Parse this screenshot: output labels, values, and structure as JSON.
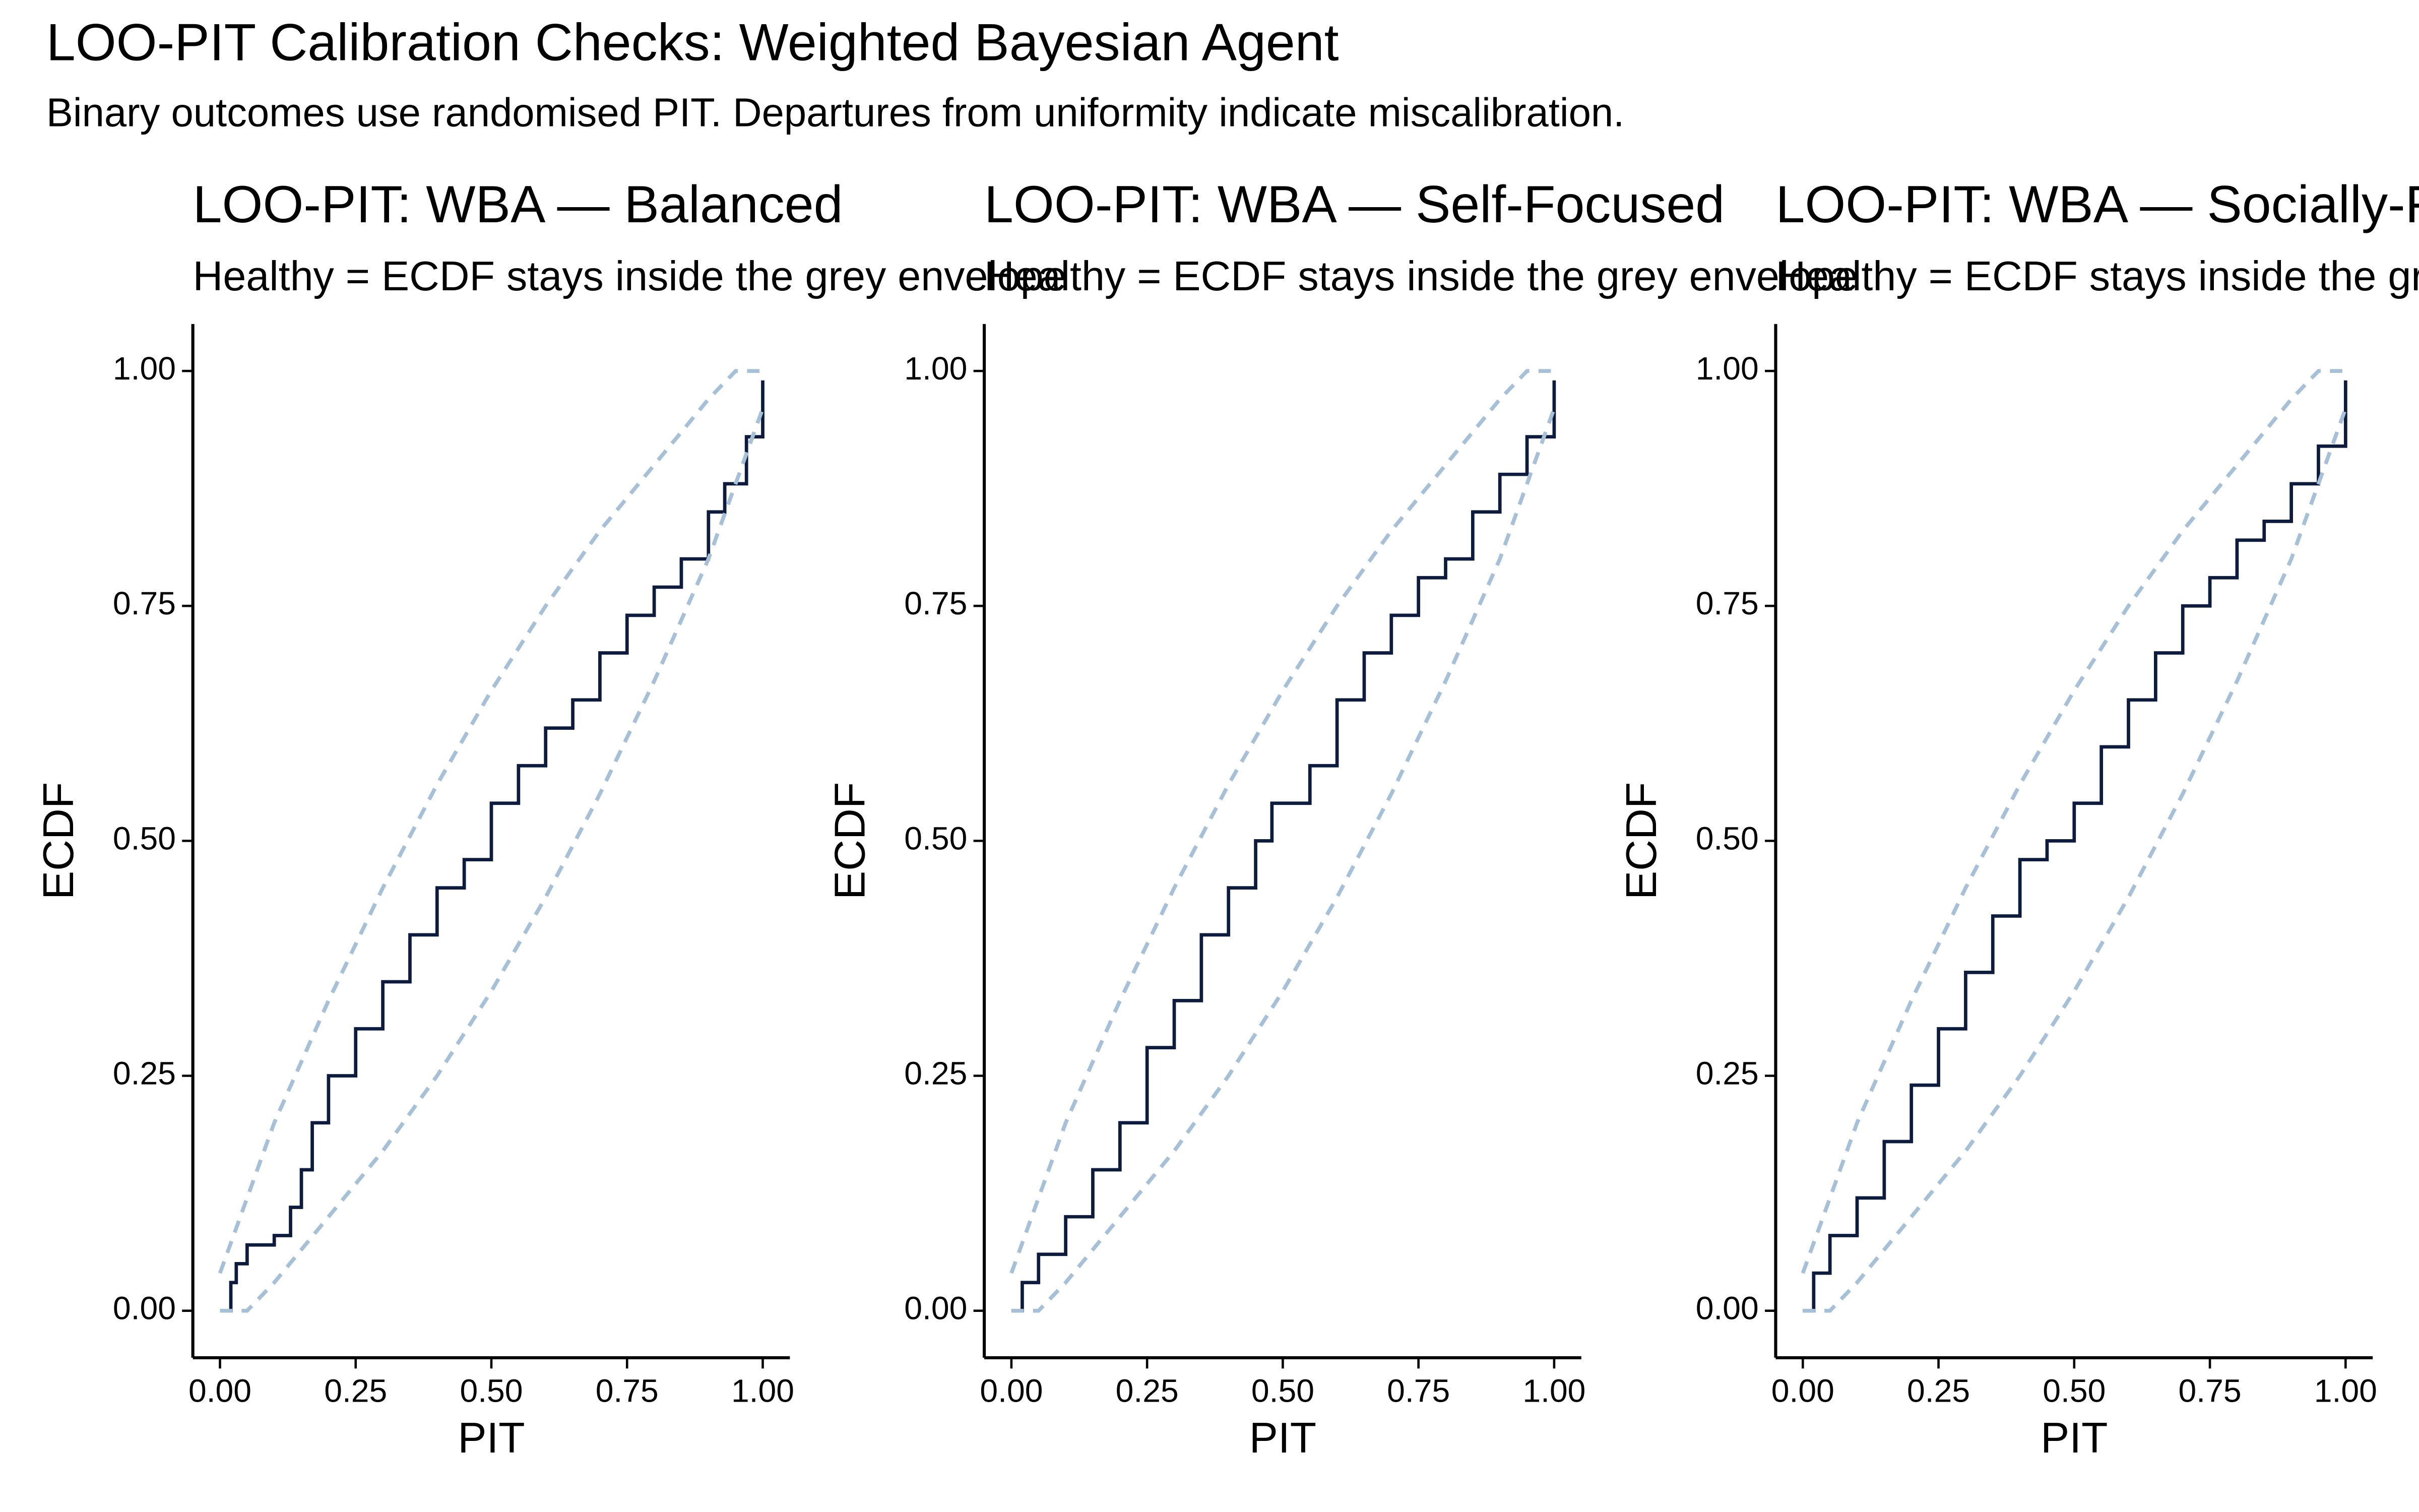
{
  "title": "LOO-PIT Calibration Checks: Weighted Bayesian Agent",
  "subtitle": "Binary outcomes use randomised PIT. Departures from uniformity indicate miscalibration.",
  "chart_data": [
    {
      "type": "line",
      "title": "LOO-PIT: WBA — Balanced",
      "subtitle": "Healthy = ECDF stays inside the grey envelope",
      "xlabel": "PIT",
      "ylabel": "ECDF",
      "xlim": [
        -0.05,
        1.05
      ],
      "ylim": [
        -0.05,
        1.05
      ],
      "xticks": [
        {
          "value": 0,
          "label": "0.00"
        },
        {
          "value": 0.25,
          "label": "0.25"
        },
        {
          "value": 0.5,
          "label": "0.50"
        },
        {
          "value": 0.75,
          "label": "0.75"
        },
        {
          "value": 1,
          "label": "1.00"
        }
      ],
      "yticks": [
        {
          "value": 0,
          "label": "0.00"
        },
        {
          "value": 0.25,
          "label": "0.25"
        },
        {
          "value": 0.5,
          "label": "0.50"
        },
        {
          "value": 0.75,
          "label": "0.75"
        },
        {
          "value": 1,
          "label": "1.00"
        }
      ],
      "series": [
        {
          "color": "#0d1b3e",
          "step": true,
          "x": [
            0,
            0.02,
            0.03,
            0.05,
            0.1,
            0.13,
            0.15,
            0.17,
            0.2,
            0.25,
            0.3,
            0.35,
            0.4,
            0.45,
            0.5,
            0.55,
            0.6,
            0.65,
            0.7,
            0.75,
            0.8,
            0.85,
            0.9,
            0.93,
            0.97,
            1
          ],
          "values": [
            0,
            0.03,
            0.05,
            0.07,
            0.08,
            0.11,
            0.15,
            0.2,
            0.25,
            0.3,
            0.35,
            0.4,
            0.45,
            0.48,
            0.54,
            0.58,
            0.62,
            0.65,
            0.7,
            0.74,
            0.77,
            0.8,
            0.85,
            0.88,
            0.93,
            0.99
          ]
        },
        {
          "color": "#a6c0d8",
          "dashed": true,
          "x": [
            0,
            0.05,
            0.1,
            0.2,
            0.3,
            0.4,
            0.5,
            0.6,
            0.7,
            0.8,
            0.9,
            0.95,
            1
          ],
          "values": [
            0.04,
            0.12,
            0.2,
            0.33,
            0.45,
            0.56,
            0.66,
            0.75,
            0.83,
            0.9,
            0.97,
            1,
            1
          ]
        },
        {
          "color": "#a6c0d8",
          "dashed": true,
          "x": [
            0,
            0.05,
            0.1,
            0.2,
            0.3,
            0.4,
            0.5,
            0.6,
            0.7,
            0.8,
            0.9,
            1
          ],
          "values": [
            0,
            0,
            0.03,
            0.1,
            0.17,
            0.25,
            0.34,
            0.44,
            0.55,
            0.67,
            0.8,
            0.96
          ]
        }
      ]
    },
    {
      "type": "line",
      "title": "LOO-PIT: WBA — Self-Focused",
      "subtitle": "Healthy = ECDF stays inside the grey envelope",
      "xlabel": "PIT",
      "ylabel": "ECDF",
      "xlim": [
        -0.05,
        1.05
      ],
      "ylim": [
        -0.05,
        1.05
      ],
      "xticks": [
        {
          "value": 0,
          "label": "0.00"
        },
        {
          "value": 0.25,
          "label": "0.25"
        },
        {
          "value": 0.5,
          "label": "0.50"
        },
        {
          "value": 0.75,
          "label": "0.75"
        },
        {
          "value": 1,
          "label": "1.00"
        }
      ],
      "yticks": [
        {
          "value": 0,
          "label": "0.00"
        },
        {
          "value": 0.25,
          "label": "0.25"
        },
        {
          "value": 0.5,
          "label": "0.50"
        },
        {
          "value": 0.75,
          "label": "0.75"
        },
        {
          "value": 1,
          "label": "1.00"
        }
      ],
      "series": [
        {
          "color": "#0d1b3e",
          "step": true,
          "x": [
            0,
            0.02,
            0.05,
            0.1,
            0.15,
            0.2,
            0.25,
            0.3,
            0.35,
            0.4,
            0.45,
            0.48,
            0.55,
            0.6,
            0.65,
            0.7,
            0.75,
            0.8,
            0.85,
            0.9,
            0.95,
            1
          ],
          "values": [
            0,
            0.03,
            0.06,
            0.1,
            0.15,
            0.2,
            0.28,
            0.33,
            0.4,
            0.45,
            0.5,
            0.54,
            0.58,
            0.65,
            0.7,
            0.74,
            0.78,
            0.8,
            0.85,
            0.89,
            0.93,
            0.99
          ]
        },
        {
          "color": "#a6c0d8",
          "dashed": true,
          "x": [
            0,
            0.05,
            0.1,
            0.2,
            0.3,
            0.4,
            0.5,
            0.6,
            0.7,
            0.8,
            0.9,
            0.95,
            1
          ],
          "values": [
            0.04,
            0.12,
            0.2,
            0.33,
            0.45,
            0.56,
            0.66,
            0.75,
            0.83,
            0.9,
            0.97,
            1,
            1
          ]
        },
        {
          "color": "#a6c0d8",
          "dashed": true,
          "x": [
            0,
            0.05,
            0.1,
            0.2,
            0.3,
            0.4,
            0.5,
            0.6,
            0.7,
            0.8,
            0.9,
            1
          ],
          "values": [
            0,
            0,
            0.03,
            0.1,
            0.17,
            0.25,
            0.34,
            0.44,
            0.55,
            0.67,
            0.8,
            0.96
          ]
        }
      ]
    },
    {
      "type": "line",
      "title": "LOO-PIT: WBA — Socially-Focused",
      "subtitle": "Healthy = ECDF stays inside the grey envelope",
      "xlabel": "PIT",
      "ylabel": "ECDF",
      "xlim": [
        -0.05,
        1.05
      ],
      "ylim": [
        -0.05,
        1.05
      ],
      "xticks": [
        {
          "value": 0,
          "label": "0.00"
        },
        {
          "value": 0.25,
          "label": "0.25"
        },
        {
          "value": 0.5,
          "label": "0.50"
        },
        {
          "value": 0.75,
          "label": "0.75"
        },
        {
          "value": 1,
          "label": "1.00"
        }
      ],
      "yticks": [
        {
          "value": 0,
          "label": "0.00"
        },
        {
          "value": 0.25,
          "label": "0.25"
        },
        {
          "value": 0.5,
          "label": "0.50"
        },
        {
          "value": 0.75,
          "label": "0.75"
        },
        {
          "value": 1,
          "label": "1.00"
        }
      ],
      "series": [
        {
          "color": "#0d1b3e",
          "step": true,
          "x": [
            0,
            0.02,
            0.05,
            0.1,
            0.15,
            0.2,
            0.25,
            0.3,
            0.35,
            0.4,
            0.45,
            0.5,
            0.55,
            0.6,
            0.65,
            0.7,
            0.75,
            0.8,
            0.85,
            0.9,
            0.95,
            1
          ],
          "values": [
            0,
            0.04,
            0.08,
            0.12,
            0.18,
            0.24,
            0.3,
            0.36,
            0.42,
            0.48,
            0.5,
            0.54,
            0.6,
            0.65,
            0.7,
            0.75,
            0.78,
            0.82,
            0.84,
            0.88,
            0.92,
            0.99
          ]
        },
        {
          "color": "#a6c0d8",
          "dashed": true,
          "x": [
            0,
            0.05,
            0.1,
            0.2,
            0.3,
            0.4,
            0.5,
            0.6,
            0.7,
            0.8,
            0.9,
            0.95,
            1
          ],
          "values": [
            0.04,
            0.12,
            0.2,
            0.33,
            0.45,
            0.56,
            0.66,
            0.75,
            0.83,
            0.9,
            0.97,
            1,
            1
          ]
        },
        {
          "color": "#a6c0d8",
          "dashed": true,
          "x": [
            0,
            0.05,
            0.1,
            0.2,
            0.3,
            0.4,
            0.5,
            0.6,
            0.7,
            0.8,
            0.9,
            1
          ],
          "values": [
            0,
            0,
            0.03,
            0.1,
            0.17,
            0.25,
            0.34,
            0.44,
            0.55,
            0.67,
            0.8,
            0.96
          ]
        }
      ]
    }
  ]
}
